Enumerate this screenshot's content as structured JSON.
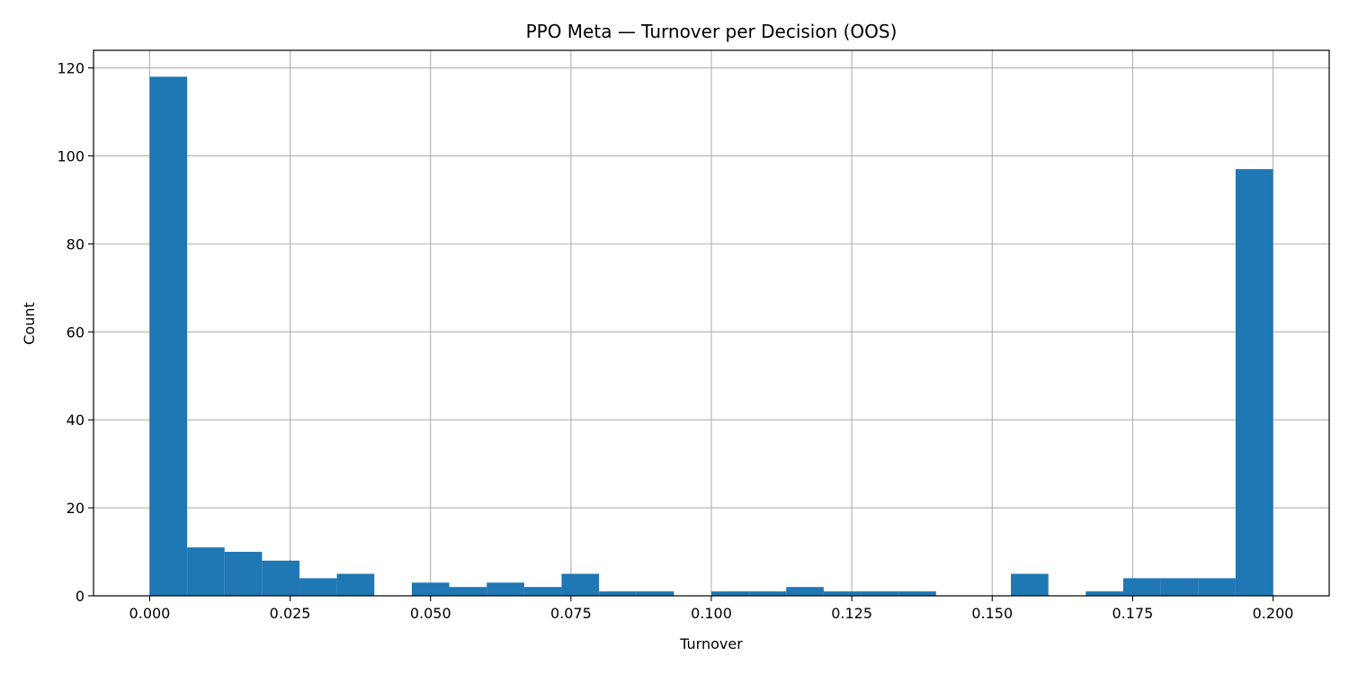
{
  "chart_data": {
    "type": "bar",
    "title": "PPO Meta — Turnover per Decision (OOS)",
    "xlabel": "Turnover",
    "ylabel": "Count",
    "xlim": [
      -0.01,
      0.21
    ],
    "ylim": [
      0,
      124
    ],
    "grid": true,
    "xticks": [
      0.0,
      0.025,
      0.05,
      0.075,
      0.1,
      0.125,
      0.15,
      0.175,
      0.2
    ],
    "xtick_labels": [
      "0.000",
      "0.025",
      "0.050",
      "0.075",
      "0.100",
      "0.125",
      "0.150",
      "0.175",
      "0.200"
    ],
    "yticks": [
      0,
      20,
      40,
      60,
      80,
      100,
      120
    ],
    "ytick_labels": [
      "0",
      "20",
      "40",
      "60",
      "80",
      "100",
      "120"
    ],
    "bar_color": "#1f77b4",
    "bin_edges": [
      0.0,
      0.00667,
      0.01333,
      0.02,
      0.02667,
      0.03333,
      0.04,
      0.04667,
      0.05333,
      0.06,
      0.06667,
      0.07333,
      0.08,
      0.08667,
      0.09333,
      0.1,
      0.10667,
      0.11333,
      0.12,
      0.12667,
      0.13333,
      0.14,
      0.14667,
      0.15333,
      0.16,
      0.16667,
      0.17333,
      0.18,
      0.18667,
      0.19333,
      0.2
    ],
    "values": [
      118,
      11,
      10,
      8,
      4,
      5,
      0,
      3,
      2,
      3,
      2,
      5,
      1,
      1,
      0,
      1,
      1,
      2,
      1,
      1,
      1,
      0,
      0,
      5,
      0,
      1,
      4,
      4,
      4,
      97
    ]
  }
}
